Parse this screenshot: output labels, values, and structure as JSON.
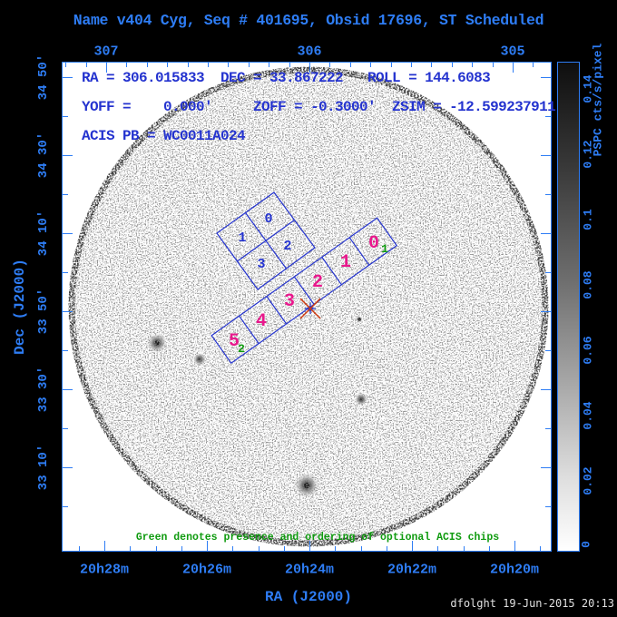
{
  "title": "Name v404 Cyg, Seq # 401695, Obsid 17696, ST Scheduled",
  "overlay": {
    "line1": "RA = 306.015833  DEC = 33.867222   ROLL = 144.6083",
    "line2": "YOFF =    0.000'     ZOFF = -0.3000'  ZSIM = -12.599237911",
    "line3": "ACIS PB = WC0011A024"
  },
  "annotation": "Green denotes presence and ordering of optional ACIS chips",
  "axes": {
    "x_top": {
      "tick_labels": [
        "307",
        "306",
        "305"
      ]
    },
    "x_bottom": {
      "tick_labels": [
        "20h28m",
        "20h26m",
        "20h24m",
        "20h22m",
        "20h20m"
      ],
      "title": "RA (J2000)"
    },
    "y_left": {
      "tick_labels": [
        "34 50'",
        "34 30'",
        "34 10'",
        "33 50'",
        "33 30'",
        "33 10'"
      ],
      "title": "Dec (J2000)"
    }
  },
  "colorbar": {
    "title": "PSPC cts/s/pixel",
    "tick_labels": [
      "0.14",
      "0.12",
      "0.1",
      "0.08",
      "0.06",
      "0.04",
      "0.02",
      "0"
    ]
  },
  "acis_i": {
    "chip_labels": [
      "0",
      "1",
      "2",
      "3"
    ]
  },
  "acis_s": {
    "chip_labels": [
      "0",
      "1",
      "2",
      "3",
      "4",
      "5"
    ],
    "optional_orders": [
      "1",
      "2"
    ]
  },
  "footer": {
    "credit": "dfolght 19-Jun-2015 20:13"
  },
  "colors": {
    "axis_blue": "#2e7df5",
    "plot_text_blue": "#2433cf",
    "chip_outline_blue": "#2433cf",
    "acis_s_magenta": "#e8188c",
    "optional_green": "#0f9b0f",
    "target_red": "#cf3a10",
    "credit_white": "#e0e0e0",
    "background": "#000000",
    "field_white": "#ffffff"
  },
  "chart_data": {
    "type": "heatmap",
    "title": "Name v404 Cyg, Seq # 401695, Obsid 17696, ST Scheduled",
    "xlabel": "RA (J2000)",
    "ylabel": "Dec (J2000)",
    "x_ticks_bottom": [
      "20h28m",
      "20h26m",
      "20h24m",
      "20h22m",
      "20h20m"
    ],
    "x_ticks_top_degrees": [
      307,
      306,
      305
    ],
    "y_ticks": [
      "34 50'",
      "34 30'",
      "34 10'",
      "33 50'",
      "33 30'",
      "33 10'"
    ],
    "colorbar": {
      "label": "PSPC cts/s/pixel",
      "range": [
        0,
        0.14
      ],
      "ticks": [
        0,
        0.02,
        0.04,
        0.06,
        0.08,
        0.1,
        0.12,
        0.14
      ]
    },
    "pointing": {
      "ra_deg": 306.015833,
      "dec_deg": 33.867222,
      "roll_deg": 144.6083,
      "yoff_arcmin": 0.0,
      "zoff_arcmin": -0.3,
      "zsim_mm": -12.599237911,
      "acis_pb": "WC0011A024"
    },
    "overlays": [
      "ROSAT PSPC counts image of V404 Cyg field (grainy circular field of view)",
      "ACIS-I 2x2 chip array outline with chips 0,1,2,3",
      "ACIS-S 1x6 chip strip outline with chips 0-5; optional chips 0 and 5 marked green order 1,2",
      "red X target marker at ACIS-S aimpoint"
    ],
    "annotations": [
      "Green denotes presence and ordering of optional ACIS chips"
    ]
  }
}
